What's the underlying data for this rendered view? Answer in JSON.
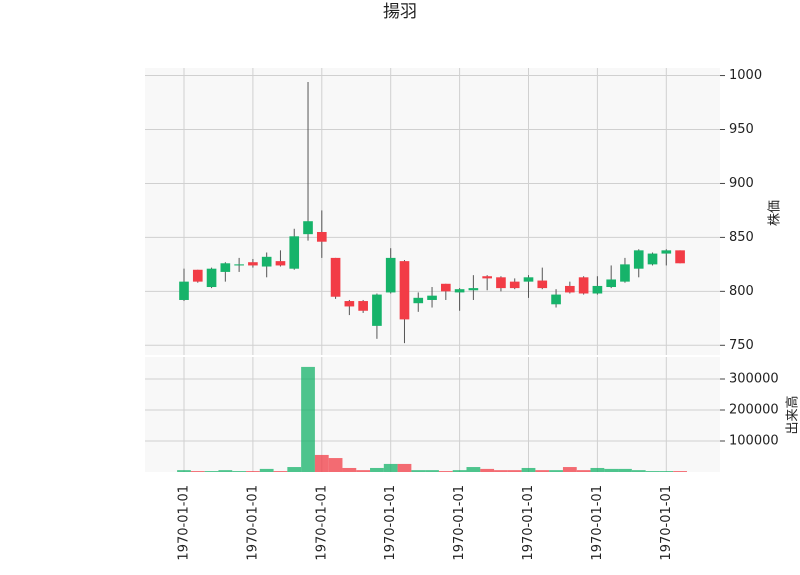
{
  "chart_data": {
    "type": "candlestick",
    "title": "揚羽",
    "categories": [
      "1970-01-01",
      null,
      null,
      null,
      null,
      "1970-01-01",
      null,
      null,
      null,
      null,
      "1970-01-01",
      null,
      null,
      null,
      null,
      "1970-01-01",
      null,
      null,
      null,
      null,
      "1970-01-01",
      null,
      null,
      null,
      null,
      "1970-01-01",
      null,
      null,
      null,
      null,
      "1970-01-01",
      null,
      null,
      null,
      null,
      "1970-01-01",
      null
    ],
    "open": [
      792,
      820,
      804,
      818,
      824,
      827,
      823,
      828,
      821,
      853,
      855,
      831,
      791,
      791,
      768,
      799,
      828,
      789,
      792,
      807,
      799,
      801,
      814,
      813,
      809,
      809,
      810,
      788,
      805,
      813,
      798,
      804,
      809,
      821,
      825,
      835,
      838
    ],
    "high": [
      821,
      820,
      822,
      827,
      831,
      830,
      836,
      838,
      858,
      994,
      875,
      831,
      792,
      792,
      798,
      840,
      829,
      799,
      804,
      807,
      803,
      815,
      815,
      814,
      812,
      815,
      822,
      802,
      809,
      814,
      814,
      824,
      831,
      839,
      836,
      839,
      838
    ],
    "low": [
      791,
      808,
      803,
      809,
      818,
      822,
      813,
      823,
      820,
      847,
      831,
      793,
      778,
      780,
      756,
      798,
      752,
      781,
      785,
      792,
      782,
      792,
      801,
      800,
      802,
      794,
      802,
      785,
      798,
      797,
      797,
      803,
      808,
      813,
      824,
      824,
      826
    ],
    "close": [
      809,
      809,
      821,
      826,
      825,
      824,
      832,
      824,
      851,
      865,
      846,
      795,
      786,
      782,
      797,
      831,
      774,
      794,
      796,
      800,
      802,
      803,
      812,
      803,
      803,
      813,
      803,
      797,
      799,
      798,
      805,
      811,
      825,
      838,
      835,
      838,
      826
    ],
    "volume": [
      6000,
      3000,
      3000,
      6000,
      3000,
      3000,
      10000,
      3000,
      16000,
      339000,
      55000,
      45000,
      13000,
      6000,
      13000,
      26000,
      26000,
      6000,
      6000,
      3000,
      6000,
      16000,
      10000,
      6000,
      6000,
      13000,
      6000,
      6000,
      16000,
      6000,
      13000,
      10000,
      10000,
      6000,
      3000,
      3000,
      3000
    ],
    "up_color": "#16b36a",
    "down_color": "#f23c46",
    "ylabel": "株価",
    "ylim": [
      741,
      1007
    ],
    "yticks": [
      750,
      800,
      850,
      900,
      950,
      1000
    ],
    "volume_label": "出来高",
    "volume_ylim": [
      0,
      371000
    ],
    "volume_yticks": [
      100000,
      200000,
      300000
    ],
    "grid": true
  }
}
